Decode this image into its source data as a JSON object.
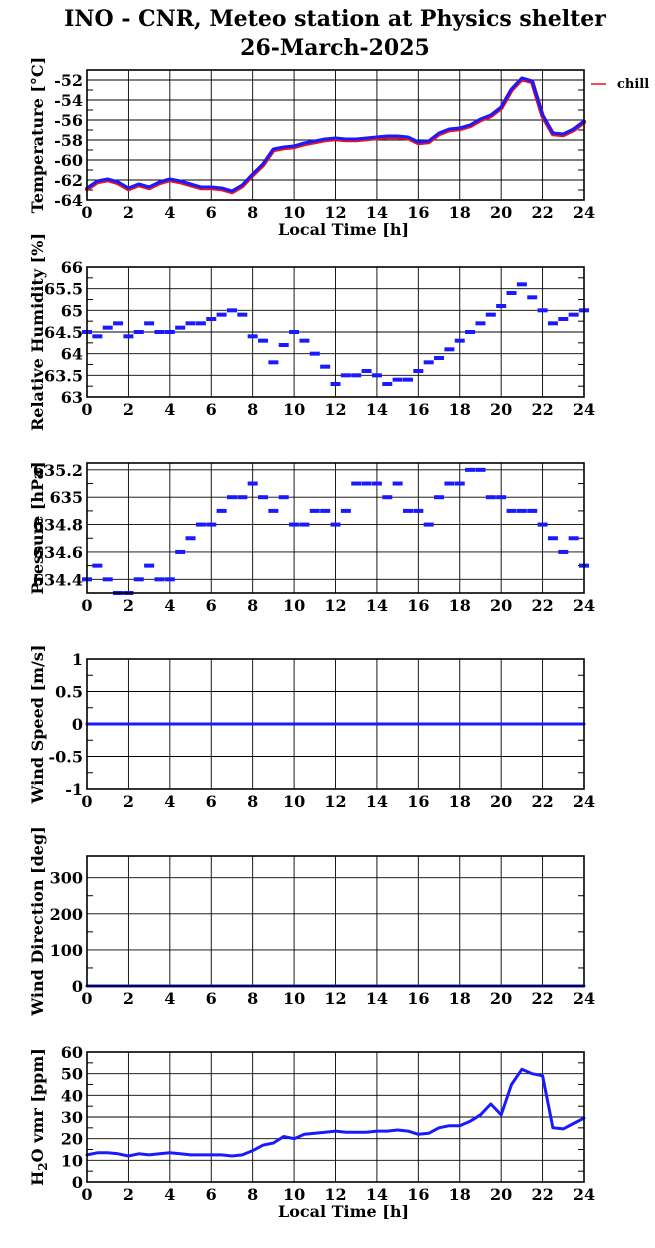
{
  "title": {
    "line1": "INO - CNR, Meteo station at Physics shelter",
    "line2": "26-March-2025"
  },
  "colors": {
    "series_blue": "#1a1aff",
    "wind_chill_red": "#e8141e",
    "grid": "#000000"
  },
  "chart_data": [
    {
      "id": "temperature",
      "type": "line",
      "ylabel": "Temperature [°C]",
      "xlabel": "Local Time [h]",
      "xlim": [
        0,
        24
      ],
      "ylim": [
        -64,
        -51
      ],
      "yticks": [
        -64,
        -62,
        -60,
        -58,
        -56,
        -54,
        -52
      ],
      "xticks": [
        0,
        2,
        4,
        6,
        8,
        10,
        12,
        14,
        16,
        18,
        20,
        22,
        24
      ],
      "grid": true,
      "legend": {
        "placement": "outside-right-top",
        "entries": [
          "chill"
        ]
      },
      "series": [
        {
          "name": "chill",
          "color": "#e8141e",
          "x": [
            0,
            0.5,
            1,
            1.5,
            2,
            2.5,
            3,
            3.5,
            4,
            4.5,
            5,
            5.5,
            6,
            6.5,
            7,
            7.5,
            8,
            8.5,
            9,
            9.5,
            10,
            10.5,
            11,
            11.5,
            12,
            12.5,
            13,
            13.5,
            14,
            14.5,
            15,
            15.5,
            16,
            16.5,
            17,
            17.5,
            18,
            18.5,
            19,
            19.5,
            20,
            20.5,
            21,
            21.5,
            22,
            22.5,
            23,
            23.5,
            24
          ],
          "y": [
            -62.9,
            -62.2,
            -62,
            -62.3,
            -62.9,
            -62.5,
            -62.8,
            -62.3,
            -62,
            -62.2,
            -62.5,
            -62.8,
            -62.8,
            -62.9,
            -63.2,
            -62.6,
            -61.5,
            -60.5,
            -59,
            -58.8,
            -58.7,
            -58.4,
            -58.2,
            -58,
            -57.9,
            -58,
            -58,
            -57.9,
            -57.8,
            -57.7,
            -57.7,
            -57.8,
            -58.3,
            -58.2,
            -57.4,
            -57,
            -56.9,
            -56.6,
            -56,
            -55.6,
            -54.8,
            -53,
            -51.9,
            -52.2,
            -55.6,
            -57.4,
            -57.5,
            -57,
            -56.2
          ]
        },
        {
          "name": "",
          "color": "#1a1aff",
          "x": [
            0,
            0.5,
            1,
            1.5,
            2,
            2.5,
            3,
            3.5,
            4,
            4.5,
            5,
            5.5,
            6,
            6.5,
            7,
            7.5,
            8,
            8.5,
            9,
            9.5,
            10,
            10.5,
            11,
            11.5,
            12,
            12.5,
            13,
            13.5,
            14,
            14.5,
            15,
            15.5,
            16,
            16.5,
            17,
            17.5,
            18,
            18.5,
            19,
            19.5,
            20,
            20.5,
            21,
            21.5,
            22,
            22.5,
            23,
            23.5,
            24
          ],
          "y": [
            -62.8,
            -62.1,
            -61.9,
            -62.2,
            -62.8,
            -62.4,
            -62.7,
            -62.2,
            -61.9,
            -62.1,
            -62.4,
            -62.7,
            -62.7,
            -62.8,
            -63.1,
            -62.5,
            -61.4,
            -60.4,
            -58.9,
            -58.7,
            -58.6,
            -58.3,
            -58.1,
            -57.9,
            -57.8,
            -57.9,
            -57.9,
            -57.8,
            -57.7,
            -57.6,
            -57.6,
            -57.7,
            -58.2,
            -58.1,
            -57.3,
            -56.9,
            -56.8,
            -56.5,
            -55.9,
            -55.5,
            -54.7,
            -52.9,
            -51.8,
            -52.1,
            -55.5,
            -57.3,
            -57.4,
            -56.9,
            -56.1
          ]
        }
      ]
    },
    {
      "id": "humidity",
      "type": "scatter",
      "ylabel": "Relative Humidity [%]",
      "xlim": [
        0,
        24
      ],
      "ylim": [
        63,
        66
      ],
      "yticks": [
        63,
        63.5,
        64,
        64.5,
        65,
        65.5,
        66
      ],
      "xticks": [
        0,
        2,
        4,
        6,
        8,
        10,
        12,
        14,
        16,
        18,
        20,
        22,
        24
      ],
      "grid": true,
      "series": [
        {
          "name": "",
          "color": "#1a1aff",
          "x": [
            0,
            0.5,
            1,
            1.5,
            2,
            2.5,
            3,
            3.5,
            4,
            4.5,
            5,
            5.5,
            6,
            6.5,
            7,
            7.5,
            8,
            8.5,
            9,
            9.5,
            10,
            10.5,
            11,
            11.5,
            12,
            12.5,
            13,
            13.5,
            14,
            14.5,
            15,
            15.5,
            16,
            16.5,
            17,
            17.5,
            18,
            18.5,
            19,
            19.5,
            20,
            20.5,
            21,
            21.5,
            22,
            22.5,
            23,
            23.5,
            24
          ],
          "y": [
            64.5,
            64.4,
            64.6,
            64.7,
            64.4,
            64.5,
            64.7,
            64.5,
            64.5,
            64.6,
            64.7,
            64.7,
            64.8,
            64.9,
            65,
            64.9,
            64.4,
            64.3,
            63.8,
            64.2,
            64.5,
            64.3,
            64.0,
            63.7,
            63.3,
            63.5,
            63.5,
            63.6,
            63.5,
            63.3,
            63.4,
            63.4,
            63.6,
            63.8,
            63.9,
            64.1,
            64.3,
            64.5,
            64.7,
            64.9,
            65.1,
            65.4,
            65.6,
            65.3,
            65.0,
            64.7,
            64.8,
            64.9,
            65.0
          ]
        }
      ]
    },
    {
      "id": "pressure",
      "type": "scatter",
      "ylabel": "Pressure [hPa]",
      "xlim": [
        0,
        24
      ],
      "ylim": [
        634.3,
        635.25
      ],
      "yticks": [
        634.4,
        634.6,
        634.8,
        635,
        635.2
      ],
      "xticks": [
        0,
        2,
        4,
        6,
        8,
        10,
        12,
        14,
        16,
        18,
        20,
        22,
        24
      ],
      "grid": true,
      "series": [
        {
          "name": "",
          "color": "#1a1aff",
          "x": [
            0,
            0.5,
            1,
            1.5,
            2,
            2.5,
            3,
            3.5,
            4,
            4.5,
            5,
            5.5,
            6,
            6.5,
            7,
            7.5,
            8,
            8.5,
            9,
            9.5,
            10,
            10.5,
            11,
            11.5,
            12,
            12.5,
            13,
            13.5,
            14,
            14.5,
            15,
            15.5,
            16,
            16.5,
            17,
            17.5,
            18,
            18.5,
            19,
            19.5,
            20,
            20.5,
            21,
            21.5,
            22,
            22.5,
            23,
            23.5,
            24
          ],
          "y": [
            634.4,
            634.5,
            634.4,
            634.3,
            634.3,
            634.4,
            634.5,
            634.4,
            634.4,
            634.6,
            634.7,
            634.8,
            634.8,
            634.9,
            635.0,
            635.0,
            635.1,
            635.0,
            634.9,
            635.0,
            634.8,
            634.8,
            634.9,
            634.9,
            634.8,
            634.9,
            635.1,
            635.1,
            635.1,
            635.0,
            635.1,
            634.9,
            634.9,
            634.8,
            635.0,
            635.1,
            635.1,
            635.2,
            635.2,
            635.0,
            635.0,
            634.9,
            634.9,
            634.9,
            634.8,
            634.7,
            634.6,
            634.7,
            634.5
          ]
        }
      ]
    },
    {
      "id": "wind_speed",
      "type": "line",
      "ylabel": "Wind Speed [m/s]",
      "xlim": [
        0,
        24
      ],
      "ylim": [
        -1,
        1
      ],
      "yticks": [
        -1,
        -0.5,
        0,
        0.5,
        1
      ],
      "xticks": [
        0,
        2,
        4,
        6,
        8,
        10,
        12,
        14,
        16,
        18,
        20,
        22,
        24
      ],
      "grid": true,
      "series": [
        {
          "name": "",
          "color": "#1a1aff",
          "x": [
            0,
            24
          ],
          "y": [
            0,
            0
          ]
        }
      ]
    },
    {
      "id": "wind_direction",
      "type": "line",
      "ylabel": "Wind Direction [deg]",
      "xlim": [
        0,
        24
      ],
      "ylim": [
        0,
        360
      ],
      "yticks": [
        0,
        100,
        200,
        300
      ],
      "xticks": [
        0,
        2,
        4,
        6,
        8,
        10,
        12,
        14,
        16,
        18,
        20,
        22,
        24
      ],
      "grid": true,
      "series": [
        {
          "name": "",
          "color": "#1a1aff",
          "x": [
            0,
            24
          ],
          "y": [
            0,
            0
          ]
        }
      ]
    },
    {
      "id": "h2o",
      "type": "line",
      "ylabel": "H2O vmr [ppm]",
      "xlabel": "Local Time [h]",
      "xlim": [
        0,
        24
      ],
      "ylim": [
        0,
        60
      ],
      "yticks": [
        0,
        10,
        20,
        30,
        40,
        50,
        60
      ],
      "xticks": [
        0,
        2,
        4,
        6,
        8,
        10,
        12,
        14,
        16,
        18,
        20,
        22,
        24
      ],
      "grid": true,
      "series": [
        {
          "name": "",
          "color": "#1a1aff",
          "x": [
            0,
            0.5,
            1,
            1.5,
            2,
            2.5,
            3,
            3.5,
            4,
            4.5,
            5,
            5.5,
            6,
            6.5,
            7,
            7.5,
            8,
            8.5,
            9,
            9.5,
            10,
            10.5,
            11,
            11.5,
            12,
            12.5,
            13,
            13.5,
            14,
            14.5,
            15,
            15.5,
            16,
            16.5,
            17,
            17.5,
            18,
            18.5,
            19,
            19.5,
            20,
            20.5,
            21,
            21.5,
            22,
            22.5,
            23,
            23.5,
            24
          ],
          "y": [
            12.5,
            13.5,
            13.5,
            13,
            12,
            13,
            12.5,
            13,
            13.5,
            13,
            12.5,
            12.5,
            12.5,
            12.5,
            12,
            12.5,
            14.5,
            17,
            18,
            21,
            20,
            22,
            22.5,
            23,
            23.5,
            23,
            23,
            23,
            23.5,
            23.5,
            24,
            23.5,
            22,
            22.5,
            25,
            26,
            26,
            28,
            31,
            36,
            31,
            45,
            52,
            50,
            49,
            25,
            24.5,
            27,
            29.5
          ]
        }
      ]
    }
  ]
}
